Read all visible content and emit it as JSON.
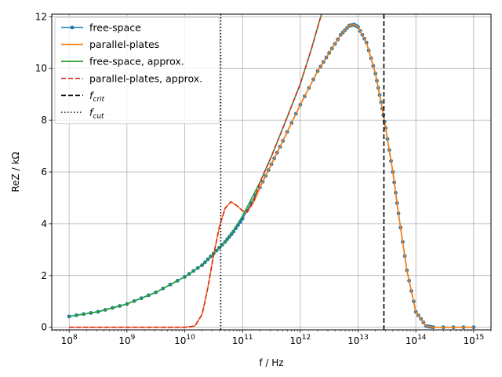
{
  "chart_data": {
    "type": "line",
    "xlabel": "f / Hz",
    "ylabel": "ReZ / kΩ",
    "xscale": "log",
    "xlim": [
      50000000,
      2000000000000000
    ],
    "ylim": [
      -0.1,
      12.1
    ],
    "grid": true,
    "legend_position": "top-left",
    "x_ticks": [
      {
        "value": 100000000,
        "base": "10",
        "exp": "8"
      },
      {
        "value": 1000000000,
        "base": "10",
        "exp": "9"
      },
      {
        "value": 10000000000,
        "base": "10",
        "exp": "10"
      },
      {
        "value": 100000000000,
        "base": "10",
        "exp": "11"
      },
      {
        "value": 1000000000000,
        "base": "10",
        "exp": "12"
      },
      {
        "value": 10000000000000,
        "base": "10",
        "exp": "13"
      },
      {
        "value": 100000000000000,
        "base": "10",
        "exp": "14"
      },
      {
        "value": 1000000000000000,
        "base": "10",
        "exp": "15"
      }
    ],
    "y_ticks": [
      {
        "value": 0,
        "label": "0"
      },
      {
        "value": 2,
        "label": "2"
      },
      {
        "value": 4,
        "label": "4"
      },
      {
        "value": 6,
        "label": "6"
      },
      {
        "value": 8,
        "label": "8"
      },
      {
        "value": 10,
        "label": "10"
      },
      {
        "value": 12,
        "label": "12"
      }
    ],
    "series": [
      {
        "name": "free-space",
        "color": "#1f77b4",
        "style": "solid-markers",
        "points": [
          [
            100000000,
            0.42
          ],
          [
            316000000,
            0.6
          ],
          [
            1000000000,
            0.9
          ],
          [
            3160000000,
            1.35
          ],
          [
            10000000000,
            1.95
          ],
          [
            20000000000,
            2.4
          ],
          [
            31600000000,
            2.85
          ],
          [
            50000000000,
            3.3
          ],
          [
            70000000000,
            3.7
          ],
          [
            100000000000,
            4.2
          ],
          [
            200000000000,
            5.4
          ],
          [
            316000000000,
            6.3
          ],
          [
            500000000000,
            7.2
          ],
          [
            1000000000000,
            8.6
          ],
          [
            2000000000000,
            9.9
          ],
          [
            3160000000000,
            10.6
          ],
          [
            5000000000000,
            11.3
          ],
          [
            7000000000000,
            11.65
          ],
          [
            8500000000000,
            11.7
          ],
          [
            10000000000000,
            11.6
          ],
          [
            14000000000000,
            11.0
          ],
          [
            20000000000000,
            9.8
          ],
          [
            25000000000000,
            8.7
          ],
          [
            30000000000000,
            7.7
          ],
          [
            40000000000000,
            6.0
          ],
          [
            50000000000000,
            4.4
          ],
          [
            70000000000000,
            2.2
          ],
          [
            100000000000000,
            0.6
          ],
          [
            150000000000000,
            0.05
          ],
          [
            200000000000000,
            0.0
          ],
          [
            1000000000000000,
            0.0
          ]
        ]
      },
      {
        "name": "parallel-plates",
        "color": "#ff7f0e",
        "style": "solid",
        "points": [
          [
            100000000,
            0.0
          ],
          [
            10000000000,
            0.0
          ],
          [
            15000000000,
            0.05
          ],
          [
            20000000000,
            0.5
          ],
          [
            25000000000,
            1.5
          ],
          [
            31600000000,
            2.8
          ],
          [
            40000000000,
            3.9
          ],
          [
            50000000000,
            4.6
          ],
          [
            63000000000,
            4.85
          ],
          [
            80000000000,
            4.7
          ],
          [
            100000000000,
            4.5
          ],
          [
            120000000000,
            4.45
          ],
          [
            158000000000,
            4.85
          ],
          [
            200000000000,
            5.4
          ],
          [
            316000000000,
            6.3
          ],
          [
            500000000000,
            7.2
          ],
          [
            1000000000000,
            8.6
          ],
          [
            2000000000000,
            9.9
          ],
          [
            3160000000000,
            10.6
          ],
          [
            5000000000000,
            11.3
          ],
          [
            7000000000000,
            11.65
          ],
          [
            8500000000000,
            11.7
          ],
          [
            10000000000000,
            11.6
          ],
          [
            14000000000000,
            11.0
          ],
          [
            20000000000000,
            9.8
          ],
          [
            25000000000000,
            8.7
          ],
          [
            30000000000000,
            7.7
          ],
          [
            40000000000000,
            6.0
          ],
          [
            50000000000000,
            4.4
          ],
          [
            70000000000000,
            2.2
          ],
          [
            100000000000000,
            0.6
          ],
          [
            150000000000000,
            0.05
          ],
          [
            200000000000000,
            0.0
          ],
          [
            1000000000000000,
            0.0
          ]
        ]
      },
      {
        "name": "free-space, approx.",
        "color": "#2ca02c",
        "style": "solid",
        "points": [
          [
            100000000,
            0.42
          ],
          [
            316000000,
            0.6
          ],
          [
            1000000000,
            0.9
          ],
          [
            3160000000,
            1.35
          ],
          [
            10000000000,
            1.95
          ],
          [
            20000000000,
            2.4
          ],
          [
            31600000000,
            2.85
          ],
          [
            50000000000,
            3.3
          ],
          [
            70000000000,
            3.75
          ],
          [
            100000000000,
            4.3
          ],
          [
            200000000000,
            5.6
          ],
          [
            316000000000,
            6.6
          ],
          [
            500000000000,
            7.7
          ],
          [
            1000000000000,
            9.4
          ],
          [
            1580000000000,
            10.8
          ],
          [
            2000000000000,
            11.6
          ],
          [
            2400000000000,
            12.2
          ]
        ]
      },
      {
        "name": "parallel-plates, approx.",
        "color": "#d62728",
        "style": "dashed",
        "points": [
          [
            100000000,
            0.0
          ],
          [
            10000000000,
            0.0
          ],
          [
            15000000000,
            0.05
          ],
          [
            20000000000,
            0.5
          ],
          [
            25000000000,
            1.5
          ],
          [
            31600000000,
            2.8
          ],
          [
            40000000000,
            3.9
          ],
          [
            50000000000,
            4.6
          ],
          [
            63000000000,
            4.85
          ],
          [
            80000000000,
            4.7
          ],
          [
            100000000000,
            4.5
          ],
          [
            120000000000,
            4.45
          ],
          [
            158000000000,
            4.9
          ],
          [
            200000000000,
            5.6
          ],
          [
            316000000000,
            6.6
          ],
          [
            500000000000,
            7.7
          ],
          [
            1000000000000,
            9.4
          ],
          [
            1580000000000,
            10.8
          ],
          [
            2000000000000,
            11.6
          ],
          [
            2400000000000,
            12.2
          ]
        ]
      }
    ],
    "vlines": [
      {
        "name": "f_crit",
        "label_main": "f",
        "label_sub": "crit",
        "x": 28000000000000,
        "color": "#000000",
        "style": "dashed"
      },
      {
        "name": "f_cut",
        "label_main": "f",
        "label_sub": "cut",
        "x": 42000000000,
        "color": "#000000",
        "style": "dotted"
      }
    ]
  }
}
